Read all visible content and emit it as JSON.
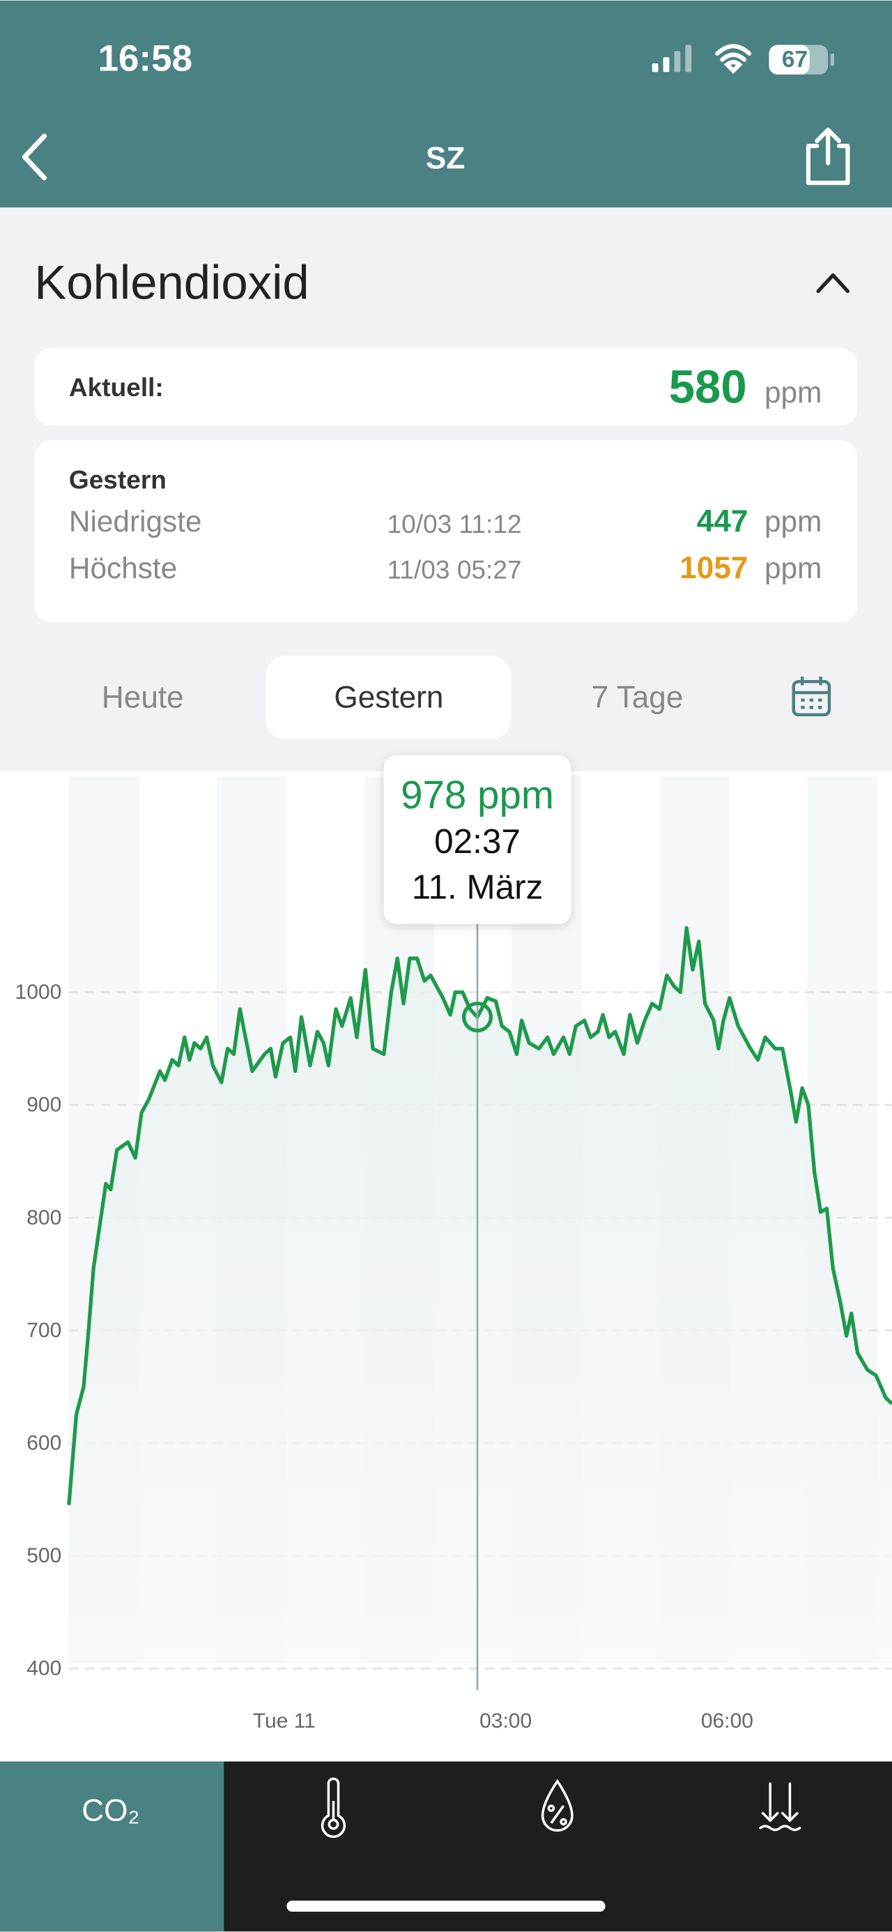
{
  "status_bar": {
    "time": "16:58",
    "battery": "67"
  },
  "header": {
    "title": "SZ"
  },
  "section": {
    "title": "Kohlendioxid"
  },
  "current": {
    "label": "Aktuell:",
    "value": "580",
    "unit": "ppm"
  },
  "yesterday": {
    "title": "Gestern",
    "rows": [
      {
        "label": "Niedrigste",
        "time": "10/03 11:12",
        "value": "447",
        "unit": "ppm"
      },
      {
        "label": "Höchste",
        "time": "11/03 05:27",
        "value": "1057",
        "unit": "ppm"
      }
    ]
  },
  "tabs": [
    "Heute",
    "Gestern",
    "7 Tage"
  ],
  "tooltip": {
    "value": "978 ppm",
    "time": "02:37",
    "date": "11. März"
  },
  "nav": [
    "CO₂"
  ],
  "chart_data": {
    "type": "line",
    "color": "#1e9a4c",
    "grid": true,
    "xlim": [
      -175,
      494
    ],
    "ylim": [
      383,
      1197
    ],
    "xticks": [
      {
        "value": 0,
        "label": "Tue 11"
      },
      {
        "value": 180,
        "label": "03:00"
      },
      {
        "value": 360,
        "label": "06:00"
      }
    ],
    "yticks": [
      400,
      500,
      600,
      700,
      800,
      900,
      1000
    ],
    "x": [
      -175,
      -169,
      -163,
      -159,
      -155,
      -149,
      -145,
      -141,
      -136,
      -127,
      -121,
      -116,
      -110,
      -101,
      -97,
      -91,
      -86,
      -81,
      -77,
      -73,
      -68,
      -63,
      -58,
      -51,
      -46,
      -41,
      -36,
      -26,
      -16,
      -11,
      -7,
      -1,
      5,
      9,
      14,
      21,
      27,
      32,
      36,
      42,
      47,
      54,
      59,
      66,
      72,
      81,
      87,
      92,
      97,
      102,
      108,
      114,
      119,
      129,
      135,
      139,
      145,
      151,
      157,
      165,
      172,
      177,
      183,
      189,
      193,
      199,
      207,
      214,
      219,
      227,
      232,
      237,
      244,
      249,
      255,
      259,
      264,
      269,
      276,
      281,
      287,
      293,
      299,
      305,
      311,
      317,
      322,
      327,
      332,
      337,
      342,
      349,
      353,
      357,
      362,
      369,
      379,
      385,
      391,
      399,
      405,
      412,
      416,
      421,
      426,
      431,
      436,
      441,
      446,
      452,
      457,
      461,
      466,
      474,
      481,
      489,
      494
    ],
    "values": [
      545,
      625,
      650,
      700,
      755,
      800,
      830,
      825,
      860,
      867,
      853,
      893,
      905,
      930,
      922,
      940,
      935,
      960,
      940,
      955,
      950,
      960,
      935,
      920,
      950,
      945,
      985,
      930,
      945,
      950,
      925,
      955,
      960,
      930,
      978,
      935,
      965,
      955,
      935,
      985,
      970,
      995,
      960,
      1020,
      950,
      945,
      1000,
      1030,
      990,
      1030,
      1030,
      1010,
      1015,
      995,
      980,
      1000,
      1000,
      985,
      978,
      995,
      992,
      970,
      965,
      945,
      975,
      955,
      950,
      960,
      945,
      960,
      945,
      970,
      975,
      960,
      965,
      980,
      960,
      965,
      945,
      980,
      955,
      975,
      990,
      985,
      1015,
      1005,
      1000,
      1057,
      1020,
      1045,
      990,
      975,
      950,
      975,
      995,
      970,
      950,
      940,
      960,
      950,
      950,
      910,
      885,
      915,
      900,
      840,
      805,
      808,
      755,
      725,
      695,
      715,
      680,
      665,
      660,
      640,
      635
    ]
  }
}
